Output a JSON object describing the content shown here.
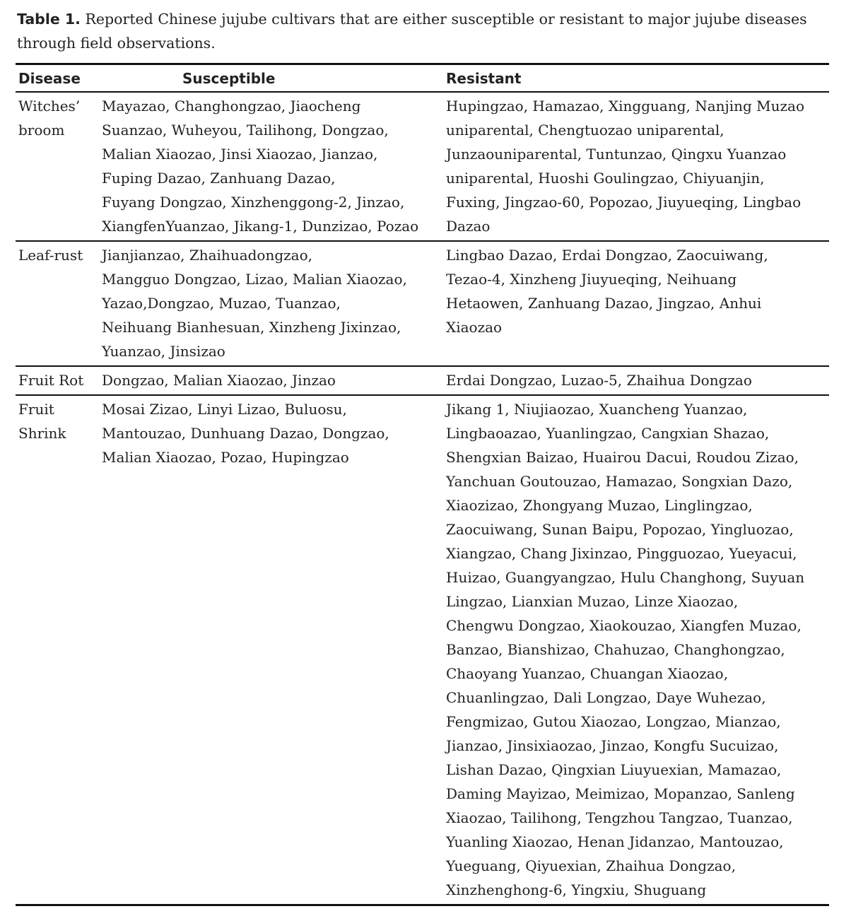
{
  "caption": {
    "label": "Table 1.",
    "text": " Reported Chinese jujube cultivars that are either susceptible or resistant to major jujube diseases through field observations."
  },
  "table": {
    "headers": [
      "Disease",
      "Susceptible",
      "Resistant"
    ],
    "rows": [
      {
        "disease": [
          "Witches’",
          "broom"
        ],
        "susceptible": [
          "Mayazao, Changhongzao, Jiaocheng",
          "Suanzao, Wuheyou, Tailihong, Dongzao,",
          "Malian Xiaozao, Jinsi Xiaozao, Jianzao,",
          "Fuping Dazao, Zanhuang Dazao,",
          "Fuyang Dongzao, Xinzhenggong-2, Jinzao,",
          "XiangfenYuanzao, Jikang-1, Dunzizao, Pozao"
        ],
        "resistant": [
          "Hupingzao, Hamazao, Xingguang, Nanjing Muzao",
          "uniparental, Chengtuozao uniparental,",
          "Junzaouniparental, Tuntunzao, Qingxu Yuanzao",
          "uniparental, Huoshi Goulingzao, Chiyuanjin,",
          "Fuxing, Jingzao-60, Popozao, Jiuyueqing, Lingbao",
          "Dazao"
        ]
      },
      {
        "disease": [
          "Leaf-rust"
        ],
        "susceptible": [
          "Jianjianzao, Zhaihuadongzao,",
          "Mangguo Dongzao, Lizao, Malian Xiaozao,",
          "Yazao,Dongzao, Muzao, Tuanzao,",
          "Neihuang Bianhesuan, Xinzheng Jixinzao,",
          "Yuanzao, Jinsizao"
        ],
        "resistant": [
          "Lingbao Dazao, Erdai Dongzao, Zaocuiwang,",
          "Tezao-4, Xinzheng Jiuyueqing, Neihuang",
          "Hetaowen, Zanhuang Dazao, Jingzao, Anhui",
          "Xiaozao"
        ]
      },
      {
        "disease": [
          "Fruit Rot"
        ],
        "susceptible": [
          "Dongzao, Malian Xiaozao, Jinzao"
        ],
        "resistant": [
          "Erdai Dongzao, Luzao-5, Zhaihua Dongzao"
        ]
      },
      {
        "disease": [
          "Fruit",
          "Shrink"
        ],
        "susceptible": [
          "Mosai Zizao, Linyi Lizao, Buluosu,",
          "Mantouzao, Dunhuang Dazao, Dongzao,",
          "Malian Xiaozao, Pozao, Hupingzao"
        ],
        "resistant": [
          "Jikang 1, Niujiaozao, Xuancheng Yuanzao,",
          "Lingbaoazao, Yuanlingzao, Cangxian Shazao,",
          "Shengxian Baizao, Huairou Dacui, Roudou Zizao,",
          "Yanchuan Goutouzao, Hamazao, Songxian Dazo,",
          "Xiaozizao, Zhongyang Muzao, Linglingzao,",
          "Zaocuiwang, Sunan Baipu, Popozao, Yingluozao,",
          "Xiangzao, Chang Jixinzao, Pingguozao, Yueyacui,",
          "Huizao, Guangyangzao, Hulu Changhong, Suyuan",
          "Lingzao, Lianxian Muzao, Linze Xiaozao,",
          "Chengwu Dongzao, Xiaokouzao, Xiangfen Muzao,",
          "Banzao, Bianshizao, Chahuzao, Changhongzao,",
          "Chaoyang Yuanzao, Chuangan Xiaozao,",
          "Chuanlingzao, Dali Longzao, Daye Wuhezao,",
          "Fengmizao, Gutou Xiaozao, Longzao, Mianzao,",
          "Jianzao, Jinsixiaozao, Jinzao, Kongfu Sucuizao,",
          "Lishan Dazao, Qingxian Liuyuexian, Mamazao,",
          "Daming Mayizao, Meimizao, Mopanzao, Sanleng",
          "Xiaozao, Tailihong, Tengzhou Tangzao, Tuanzao,",
          "Yuanling Xiaozao, Henan Jidanzao, Mantouzao,",
          "Yueguang, Qiyuexian, Zhaihua Dongzao,",
          "Xinzhenghong-6, Yingxiu, Shuguang"
        ]
      }
    ]
  }
}
